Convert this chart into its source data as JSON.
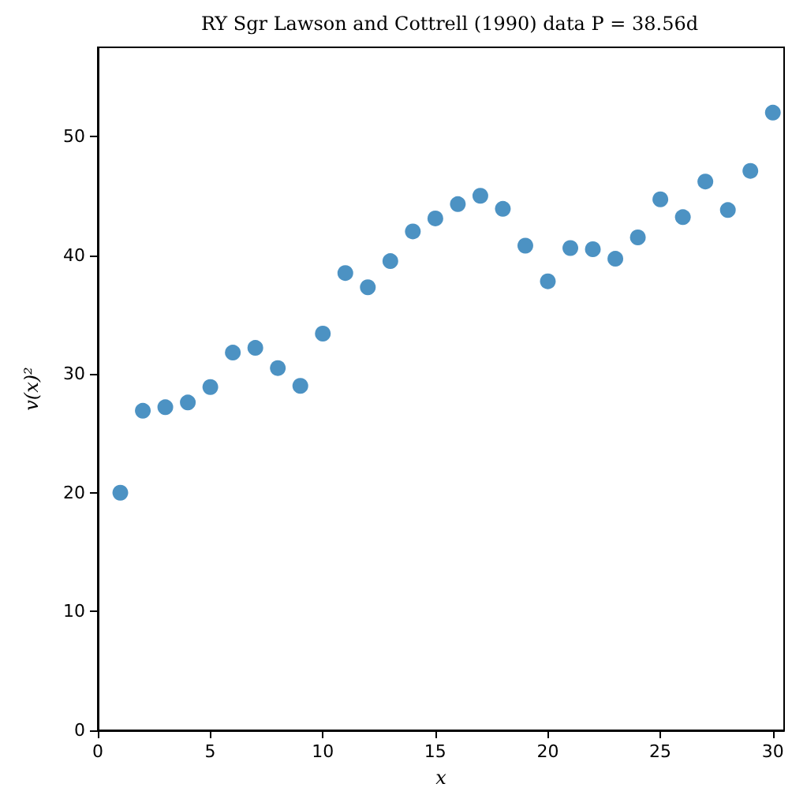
{
  "chart_data": {
    "type": "scatter",
    "title": "RY Sgr Lawson and Cottrell (1990) data P = 38.56d",
    "xlabel": "x",
    "ylabel": "v(x)²",
    "x": [
      1,
      2,
      3,
      4,
      5,
      6,
      7,
      8,
      9,
      10,
      11,
      12,
      13,
      14,
      15,
      16,
      17,
      18,
      19,
      20,
      21,
      22,
      23,
      24,
      25,
      26,
      27,
      28,
      29,
      30
    ],
    "series": [
      {
        "color": "#1f77b4",
        "values": [
          20,
          26.9,
          27.2,
          27.6,
          28.9,
          31.8,
          32.2,
          30.5,
          29.0,
          33.4,
          38.5,
          37.3,
          39.5,
          42.0,
          43.1,
          44.3,
          45.0,
          43.9,
          40.8,
          37.8,
          40.6,
          40.5,
          39.7,
          41.5,
          44.7,
          43.2,
          46.2,
          43.8,
          47.1,
          52.0
        ]
      }
    ],
    "xlim": [
      0,
      30.5
    ],
    "ylim": [
      0,
      57.5
    ],
    "xticks": [
      0,
      5,
      10,
      15,
      20,
      25,
      30
    ],
    "yticks": [
      0,
      10,
      20,
      30,
      40,
      50
    ],
    "grid": false,
    "marker": "circle"
  }
}
